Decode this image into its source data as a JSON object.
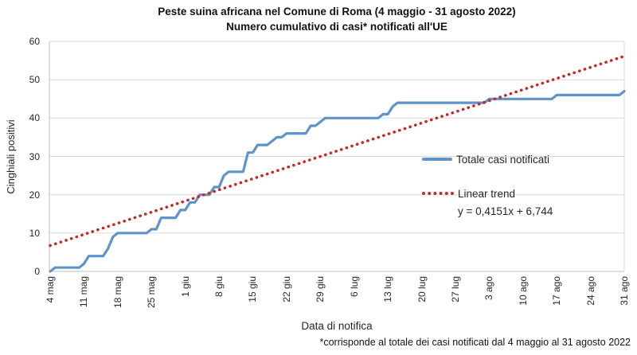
{
  "header": {
    "title_line1": "Peste suina africana nel Comune di Roma (4 maggio - 31 agosto 2022)",
    "title_line2": "Numero cumulativo di casi* notificati all'UE"
  },
  "axes": {
    "y_title": "Cinghiali positivi",
    "x_title": "Data di notifica",
    "y_tick_labels": [
      "0",
      "10",
      "20",
      "30",
      "40",
      "50",
      "60"
    ],
    "x_tick_labels": [
      "4 mag",
      "11 mag",
      "18 mag",
      "25 mag",
      "1 giu",
      "8 giu",
      "15 giu",
      "22 giu",
      "29 giu",
      "6 lug",
      "13 lug",
      "20 lug",
      "27 lug",
      "3 ago",
      "10 ago",
      "17 ago",
      "24 ago",
      "31 ago"
    ]
  },
  "legend": {
    "series1_label": "Totale casi notificati",
    "series2_label": "Linear trend",
    "equation": "y = 0,4151x + 6,744"
  },
  "footnote": "*corrisponde al totale dei casi notificati dal 4 maggio al 31 agosto 2022",
  "colors": {
    "series": "#5E94C9",
    "trend": "#C62828",
    "grid": "#D9D9D9",
    "axis": "#BFBFBF",
    "text": "#262626"
  },
  "chart_data": {
    "type": "line",
    "title": "Peste suina africana nel Comune di Roma (4 maggio - 31 agosto 2022)",
    "subtitle": "Numero cumulativo di casi* notificati all'UE",
    "xlabel": "Data di notifica",
    "ylabel": "Cinghiali positivi",
    "ylim": [
      0,
      60
    ],
    "grid": "horizontal",
    "legend_position": "center-right",
    "x_description": "punti giornalieri dal 4 maggio (giorno 0) al 31 agosto 2022 (giorno 119)",
    "x_tick_labels": [
      "4 mag",
      "11 mag",
      "18 mag",
      "25 mag",
      "1 giu",
      "8 giu",
      "15 giu",
      "22 giu",
      "29 giu",
      "6 lug",
      "13 lug",
      "20 lug",
      "27 lug",
      "3 ago",
      "10 ago",
      "17 ago",
      "24 ago",
      "31 ago"
    ],
    "x_tick_day_offsets": [
      0,
      7,
      14,
      21,
      28,
      35,
      42,
      49,
      56,
      63,
      70,
      77,
      84,
      91,
      98,
      105,
      112,
      119
    ],
    "series": [
      {
        "name": "Totale casi notificati",
        "values": [
          0,
          1,
          1,
          1,
          1,
          1,
          1,
          2,
          4,
          4,
          4,
          4,
          6,
          9,
          10,
          10,
          10,
          10,
          10,
          10,
          10,
          11,
          11,
          14,
          14,
          14,
          14,
          16,
          16,
          18,
          18,
          20,
          20,
          20,
          22,
          22,
          25,
          26,
          26,
          26,
          26,
          31,
          31,
          33,
          33,
          33,
          34,
          35,
          35,
          36,
          36,
          36,
          36,
          36,
          38,
          38,
          39,
          40,
          40,
          40,
          40,
          40,
          40,
          40,
          40,
          40,
          40,
          40,
          40,
          41,
          41,
          43,
          44,
          44,
          44,
          44,
          44,
          44,
          44,
          44,
          44,
          44,
          44,
          44,
          44,
          44,
          44,
          44,
          44,
          44,
          44,
          45,
          45,
          45,
          45,
          45,
          45,
          45,
          45,
          45,
          45,
          45,
          45,
          45,
          45,
          46,
          46,
          46,
          46,
          46,
          46,
          46,
          46,
          46,
          46,
          46,
          46,
          46,
          46,
          47
        ]
      }
    ],
    "trend": {
      "name": "Linear trend",
      "equation": "y = 0,4151x + 6,744",
      "slope": 0.4151,
      "intercept": 6.744
    },
    "final_total": 47
  }
}
